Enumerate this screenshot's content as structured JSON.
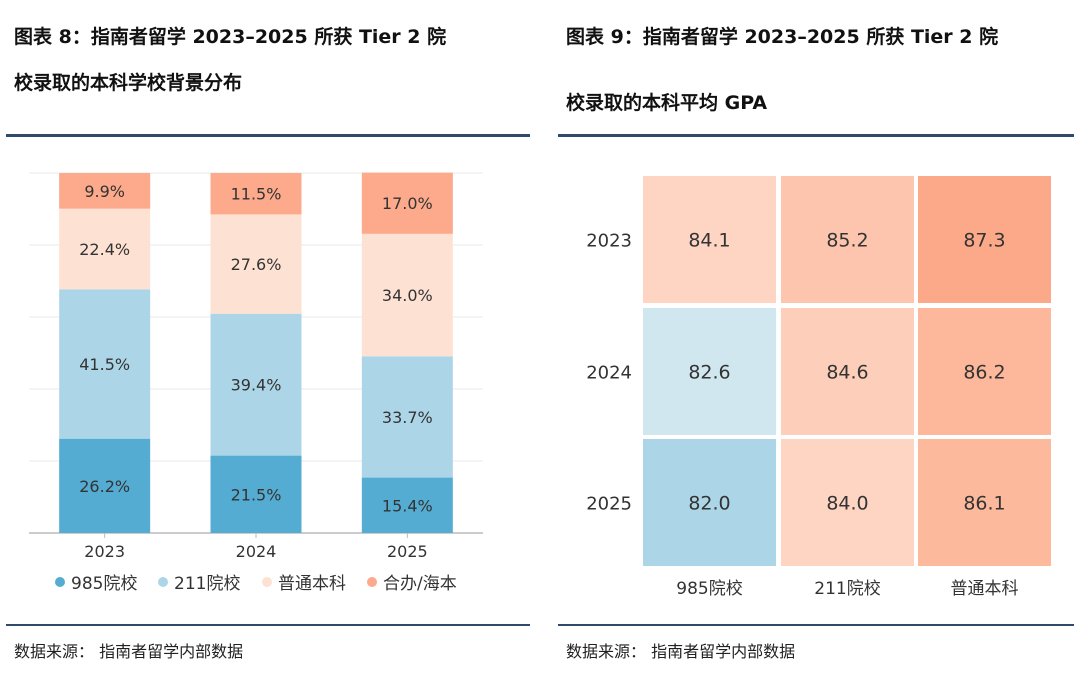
{
  "left": {
    "title_line1": "图表 8：指南者留学 2023–2025 所获 Tier 2 院",
    "title_line2": "校录取的本科学校背景分布",
    "source": "数据来源：  指南者留学内部数据"
  },
  "right": {
    "title_line1": "图表 9：指南者留学 2023–2025 所获 Tier 2 院",
    "title_line2": "校录取的本科平均 GPA",
    "source": "数据来源：  指南者留学内部数据"
  },
  "chart_data": [
    {
      "type": "bar",
      "stacked": true,
      "title": "指南者留学 2023–2025 所获 Tier 2 院校录取的本科学校背景分布",
      "categories": [
        "2023",
        "2024",
        "2025"
      ],
      "series": [
        {
          "name": "985院校",
          "values": [
            26.2,
            21.5,
            15.4
          ],
          "labels": [
            "26.2%",
            "21.5%",
            "15.4%"
          ],
          "color": "#55acd3"
        },
        {
          "name": "211院校",
          "values": [
            41.5,
            39.4,
            33.7
          ],
          "labels": [
            "41.5%",
            "39.4%",
            "33.7%"
          ],
          "color": "#acd6e8"
        },
        {
          "name": "普通本科",
          "values": [
            22.4,
            27.6,
            34.0
          ],
          "labels": [
            "22.4%",
            "27.6%",
            "34.0%"
          ],
          "color": "#fde1d3"
        },
        {
          "name": "合办/海本",
          "values": [
            9.9,
            11.5,
            17.0
          ],
          "labels": [
            "9.9%",
            "11.5%",
            "17.0%"
          ],
          "color": "#fcaa8b"
        }
      ],
      "ylim": [
        0,
        100
      ],
      "grid": true,
      "legend": "bottom"
    },
    {
      "type": "heatmap",
      "title": "指南者留学 2023–2025 所获 Tier 2 院校录取的本科平均 GPA",
      "rows": [
        "2023",
        "2024",
        "2025"
      ],
      "columns": [
        "985院校",
        "211院校",
        "普通本科"
      ],
      "values": [
        [
          84.1,
          85.2,
          87.3
        ],
        [
          82.6,
          84.6,
          86.2
        ],
        [
          82.0,
          84.0,
          86.1
        ]
      ],
      "labels": [
        [
          "84.1",
          "85.2",
          "87.3"
        ],
        [
          "82.6",
          "84.6",
          "86.2"
        ],
        [
          "82.0",
          "84.0",
          "86.1"
        ]
      ],
      "colors": [
        [
          "#fdd5c2",
          "#fdc5ad",
          "#fca98a"
        ],
        [
          "#d0e7ef",
          "#fdceb9",
          "#fdb89b"
        ],
        [
          "#acd6e8",
          "#fdd5c2",
          "#fdb99c"
        ]
      ]
    }
  ]
}
